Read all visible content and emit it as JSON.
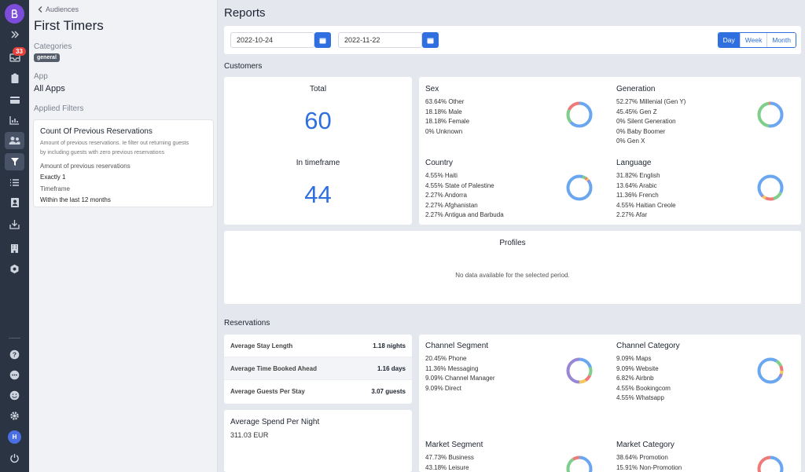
{
  "rail": {
    "badge_count": "33",
    "avatar_initial": "H"
  },
  "panel": {
    "back_label": "Audiences",
    "title": "First Timers",
    "categories_label": "Categories",
    "category_tag": "general",
    "app_label": "App",
    "app_value": "All Apps",
    "applied_filters_label": "Applied Filters",
    "filter": {
      "title": "Count Of Previous Reservations",
      "description_1": "Amount of previous reservations. Ie filter out returning guests",
      "description_2": "by including guests with zero previous reservations",
      "amount_label": "Amount of previous reservations",
      "amount_value": "Exactly 1",
      "timeframe_label": "Timeframe",
      "timeframe_value": "Within the last 12 months"
    }
  },
  "main": {
    "title": "Reports",
    "date_from": "2022-10-24",
    "date_to": "2022-11-22",
    "granularity": [
      "Day",
      "Week",
      "Month"
    ],
    "customers_label": "Customers",
    "reservations_label": "Reservations",
    "total": {
      "label": "Total",
      "value": "60"
    },
    "in_timeframe": {
      "label": "In timeframe",
      "value": "44"
    },
    "profiles": {
      "title": "Profiles",
      "empty": "No data available for the selected period."
    },
    "averages": [
      {
        "label": "Average Stay Length",
        "value": "1.18 nights"
      },
      {
        "label": "Average Time Booked Ahead",
        "value": "1.16 days"
      },
      {
        "label": "Average Guests Per Stay",
        "value": "3.07 guests"
      }
    ],
    "spend": {
      "title": "Average Spend Per Night",
      "value": "311.03 EUR"
    },
    "stats": {
      "sex": {
        "title": "Sex",
        "lines": [
          "63.64% Other",
          "18.18% Male",
          "18.18% Female",
          "0% Unknown"
        ]
      },
      "generation": {
        "title": "Generation",
        "lines": [
          "52.27% Millenial (Gen Y)",
          "45.45% Gen Z",
          "0% Silent Generation",
          "0% Baby Boomer",
          "0% Gen X"
        ]
      },
      "country": {
        "title": "Country",
        "lines": [
          "4.55% Haiti",
          "4.55% State of Palestine",
          "2.27% Andorra",
          "2.27% Afghanistan",
          "2.27% Antigua and Barbuda"
        ]
      },
      "language": {
        "title": "Language",
        "lines": [
          "31.82% English",
          "13.64% Arabic",
          "11.36% French",
          "4.55% Haitian Creole",
          "2.27% Afar"
        ]
      },
      "channel_segment": {
        "title": "Channel Segment",
        "lines": [
          "20.45% Phone",
          "11.36% Messaging",
          "9.09% Channel Manager",
          "9.09% Direct"
        ]
      },
      "channel_category": {
        "title": "Channel Category",
        "lines": [
          "9.09% Maps",
          "9.09% Website",
          "6.82% Airbnb",
          "4.55% Bookingcom",
          "4.55% Whatsapp"
        ]
      },
      "market_segment": {
        "title": "Market Segment",
        "lines": [
          "47.73% Business",
          "43.18% Leisure"
        ]
      },
      "market_category": {
        "title": "Market Category",
        "lines": [
          "38.64% Promotion",
          "15.91% Non-Promotion"
        ]
      }
    }
  },
  "colors": {
    "accent": "#2f6fe0",
    "rail_bg": "#2b3443",
    "donut_blue": "#6aa7f0",
    "donut_green": "#7fcf8a",
    "donut_red": "#ee7a7a",
    "donut_yellow": "#f2c85b",
    "donut_purple": "#9a86d6"
  }
}
